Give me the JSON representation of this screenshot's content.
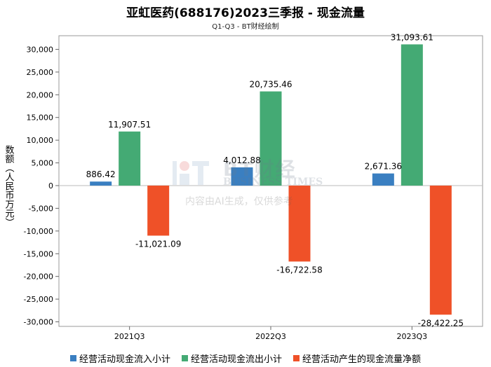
{
  "chart_data": {
    "type": "bar",
    "title": "亚虹医药(688176)2023三季报 - 现金流量",
    "subtitle": "Q1-Q3 - BT财经绘制",
    "xlabel": "",
    "ylabel": "数额（人民币万元）",
    "categories": [
      "2021Q3",
      "2022Q3",
      "2023Q3"
    ],
    "series": [
      {
        "name": "经营活动现金流入小计",
        "color": "#3a7fc1",
        "values": [
          886.42,
          4012.88,
          2671.36
        ],
        "labels": [
          "886.42",
          "4,012.88",
          "2,671.36"
        ]
      },
      {
        "name": "经营活动现金流出小计",
        "color": "#44aa74",
        "values": [
          11907.51,
          20735.46,
          31093.61
        ],
        "labels": [
          "11,907.51",
          "20,735.46",
          "31,093.61"
        ]
      },
      {
        "name": "经营活动产生的现金流量净额",
        "color": "#ef5128",
        "values": [
          -11021.09,
          -16722.58,
          -28422.25
        ],
        "labels": [
          "-11,021.09",
          "-16,722.58",
          "-28,422.25"
        ]
      }
    ],
    "ylim": [
      -31000,
      33000
    ],
    "yticks": [
      30000,
      25000,
      20000,
      15000,
      10000,
      5000,
      0,
      -5000,
      -10000,
      -15000,
      -20000,
      -25000,
      -30000
    ],
    "ytick_labels": [
      "30,000",
      "25,000",
      "20,000",
      "15,000",
      "10,000",
      "5,000",
      "0",
      "-5,000",
      "-10,000",
      "-15,000",
      "-20,000",
      "-25,000",
      "-30,000"
    ],
    "grid": false,
    "legend_position": "bottom"
  },
  "watermark": {
    "brand_cn": "BT财经",
    "brand_en": "BUSINESS TIMES",
    "note": "内容由AI生成，仅供参考"
  }
}
